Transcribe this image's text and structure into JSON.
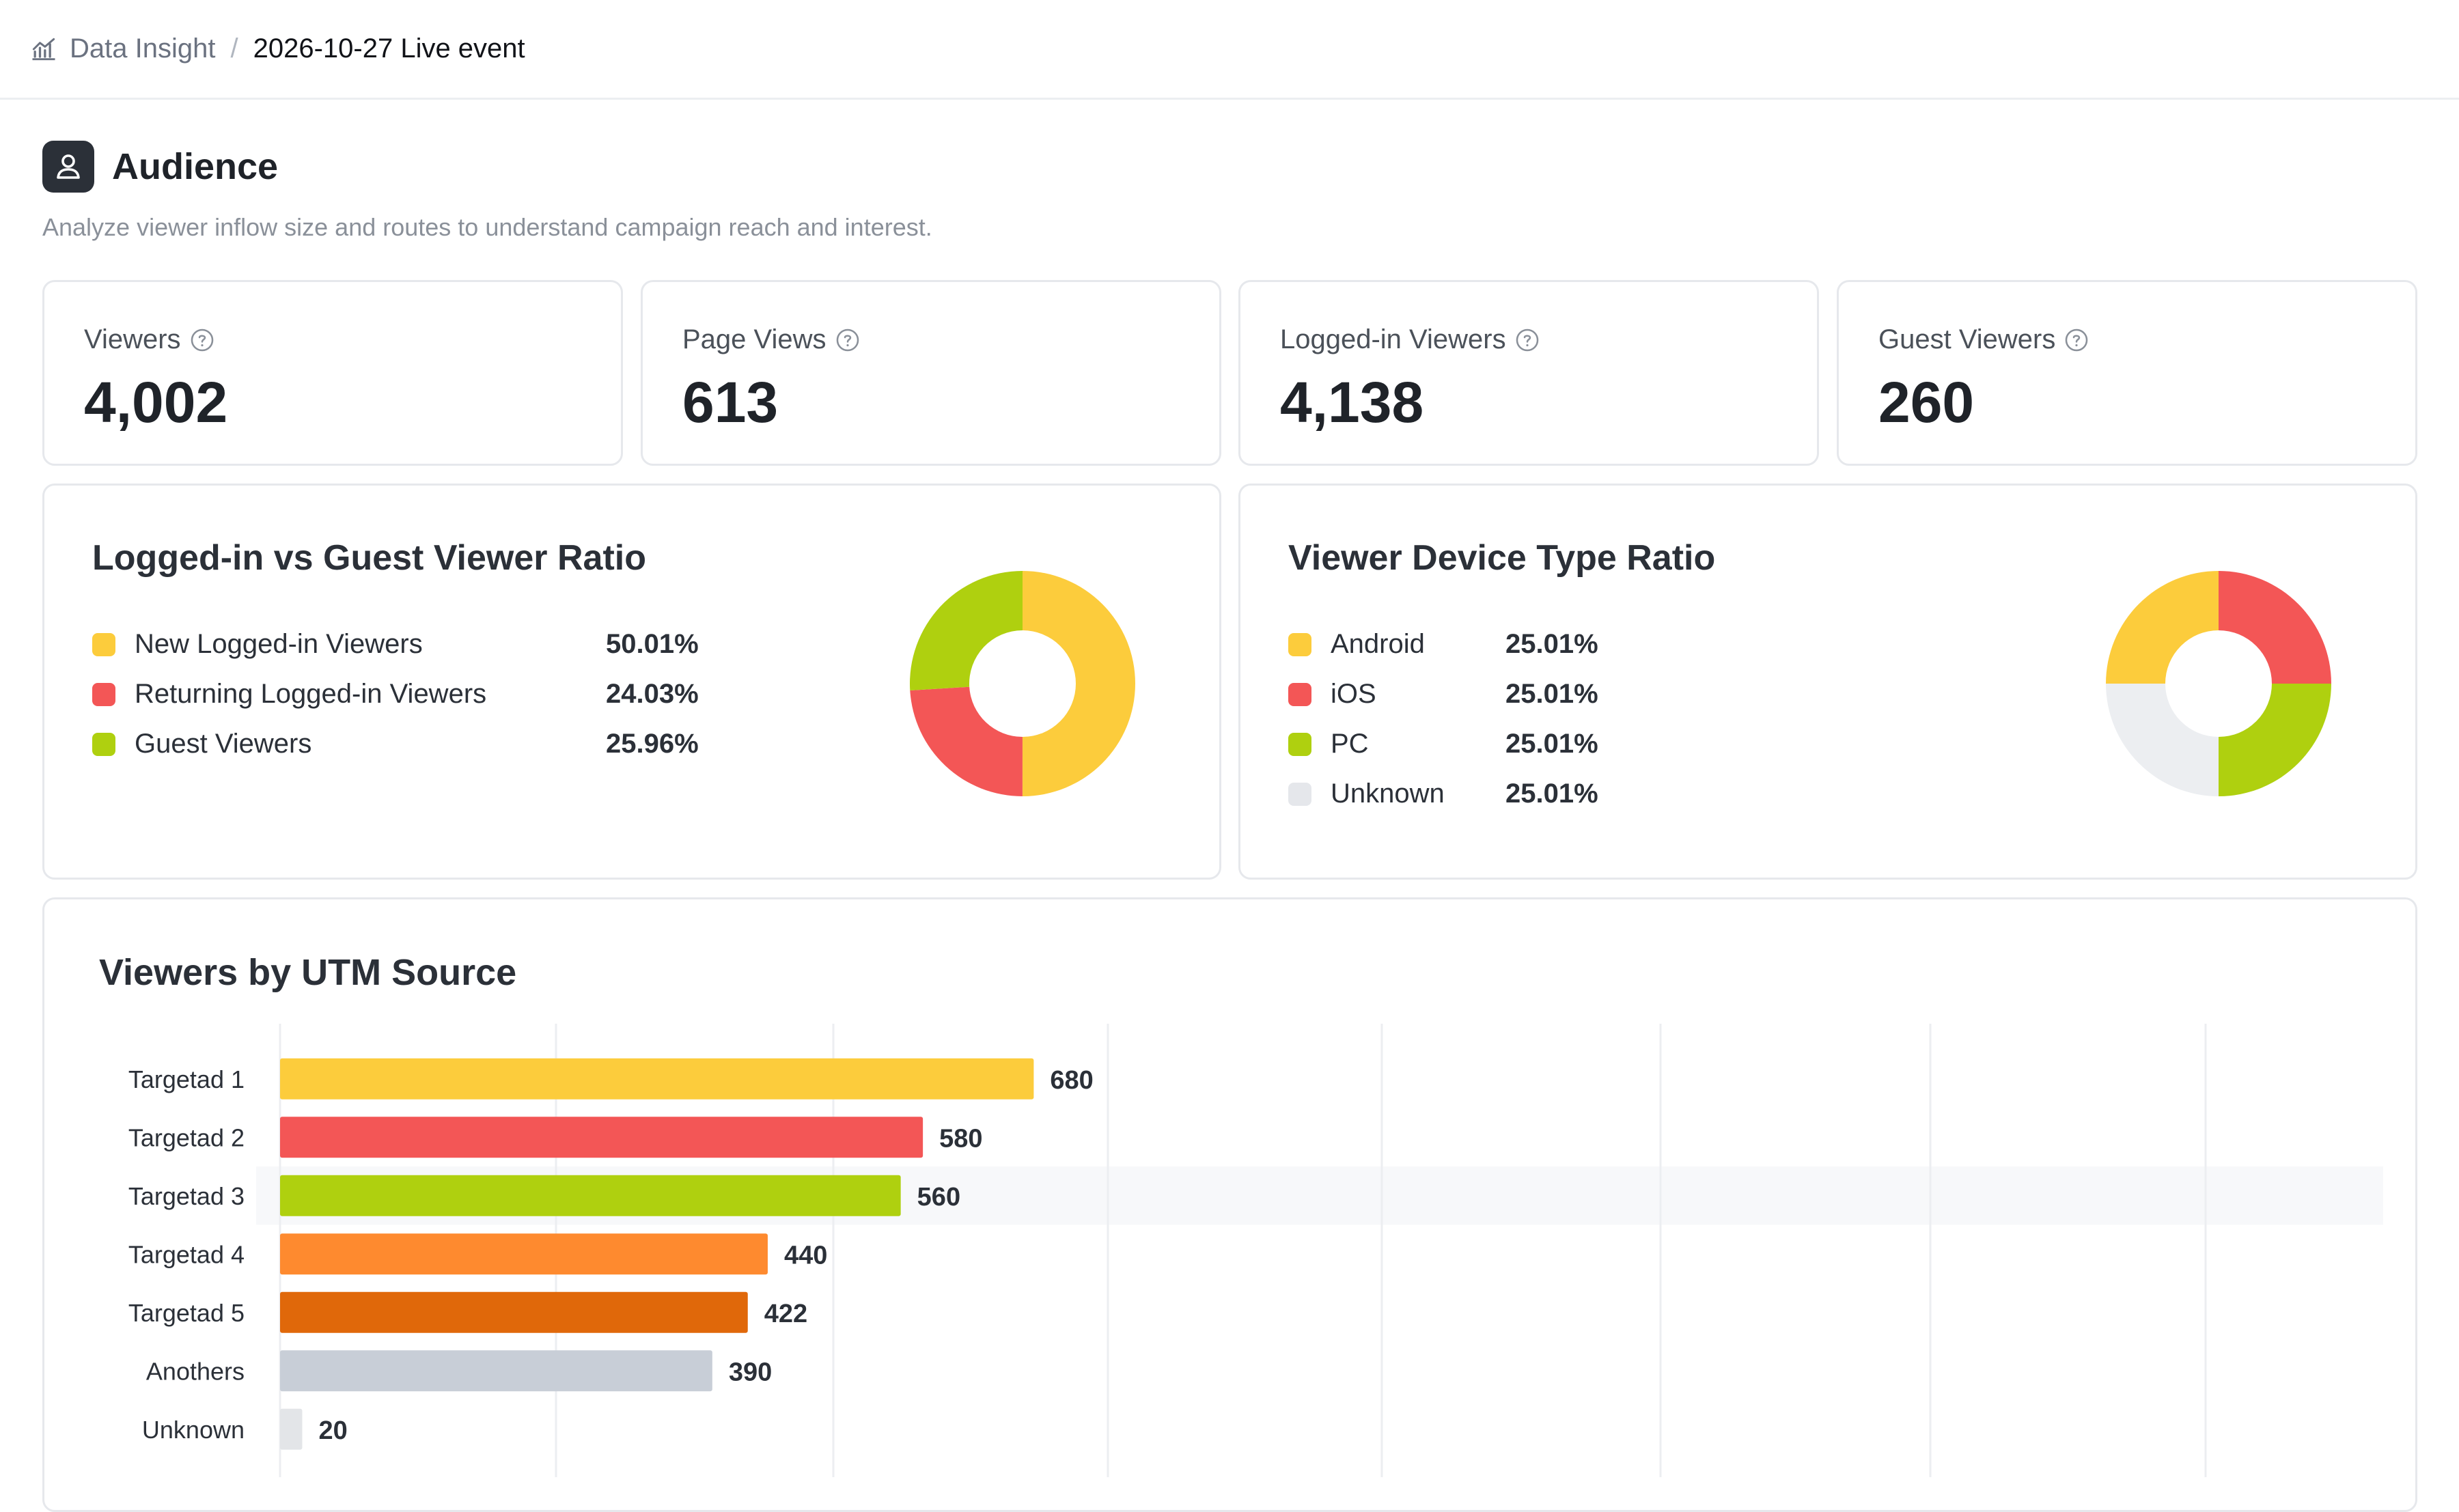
{
  "breadcrumb": {
    "icon": "analytics-chart-icon",
    "root": "Data Insight",
    "separator": "/",
    "current": "2026-10-27 Live event"
  },
  "section": {
    "icon": "user-icon",
    "title": "Audience",
    "description": "Analyze viewer inflow size and routes to understand campaign reach and interest."
  },
  "metrics": [
    {
      "label": "Viewers",
      "value": "4,002",
      "help_icon": "help-circle-icon"
    },
    {
      "label": "Page Views",
      "value": "613",
      "help_icon": "help-circle-icon"
    },
    {
      "label": "Logged-in Viewers",
      "value": "4,138",
      "help_icon": "help-circle-icon"
    },
    {
      "label": "Guest Viewers",
      "value": "260",
      "help_icon": "help-circle-icon"
    }
  ],
  "login_ratio": {
    "title": "Logged-in vs Guest Viewer Ratio",
    "items": [
      {
        "label": "New Logged-in Viewers",
        "value": "50.01%",
        "share": 50.01,
        "color": "#fccc3c"
      },
      {
        "label": "Returning Logged-in Viewers",
        "value": "24.03%",
        "share": 24.03,
        "color": "#f35656"
      },
      {
        "label": "Guest Viewers",
        "value": "25.96%",
        "share": 25.96,
        "color": "#afd00f"
      }
    ]
  },
  "device_ratio": {
    "title": "Viewer Device Type Ratio",
    "items": [
      {
        "label": "Android",
        "value": "25.01%",
        "share": 25.01,
        "color": "#f35656"
      },
      {
        "label": "iOS",
        "value": "25.01%",
        "share": 25.01,
        "color": "#afd00f"
      },
      {
        "label": "PC",
        "value": "25.01%",
        "share": 25.01,
        "color": "#eceef1"
      },
      {
        "label": "Unknown",
        "value": "25.01%",
        "share": 25.01,
        "color": "#fccc3c"
      }
    ],
    "legend_colors": [
      "#fccc3c",
      "#f35656",
      "#afd00f",
      "#e5e7eb"
    ]
  },
  "utm": {
    "title": "Viewers by UTM Source",
    "highlighted_index": 2
  },
  "chart_data": {
    "type": "bar",
    "orientation": "horizontal",
    "title": "Viewers by UTM Source",
    "categories": [
      "Targetad 1",
      "Targetad 2",
      "Targetad 3",
      "Targetad 4",
      "Targetad 5",
      "Anothers",
      "Unknown"
    ],
    "values": [
      680,
      580,
      560,
      440,
      422,
      390,
      20
    ],
    "data_labels": [
      "680",
      "580",
      "560",
      "440",
      "422",
      "390",
      "20"
    ],
    "colors": [
      "#fccc3c",
      "#f35656",
      "#afd00f",
      "#fe8a2f",
      "#e0680a",
      "#c8ced7",
      "#e3e5e8"
    ],
    "xlim": [
      0,
      1900
    ],
    "grid": true
  }
}
